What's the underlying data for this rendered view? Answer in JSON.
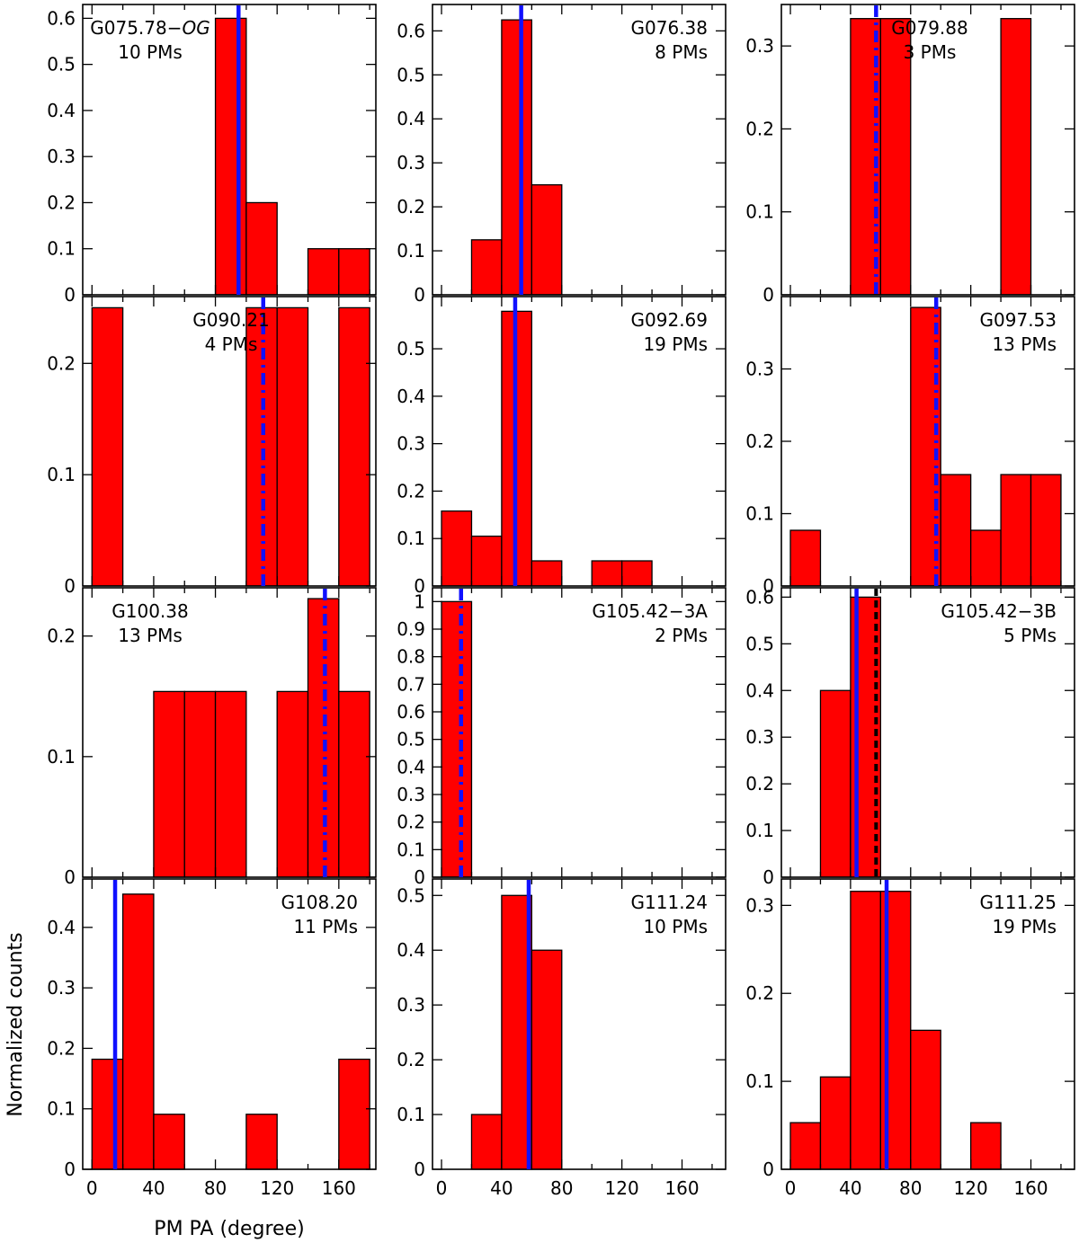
{
  "figure": {
    "ylabel": "Normalized counts",
    "xlabel": "PM PA (degree)",
    "x_tick_labels": [
      "0",
      "40",
      "80",
      "120",
      "160"
    ]
  },
  "chart_data": [
    {
      "type": "bar",
      "name": "G075.78-OG",
      "title_prefix": "G075.78−",
      "title_italic": "OG",
      "subtitle": "10 PMs",
      "label_align": "left",
      "bin_width": 20,
      "bins": [
        0,
        20,
        40,
        60,
        80,
        100,
        120,
        140,
        160
      ],
      "values": [
        0,
        0,
        0,
        0,
        0.6,
        0.2,
        0,
        0.1,
        0.1
      ],
      "ylim": [
        0,
        0.63
      ],
      "yticks": [
        0,
        0.1,
        0.2,
        0.3,
        0.4,
        0.5,
        0.6
      ],
      "yticklabels": [
        "0",
        "0.1",
        "0.2",
        "0.3",
        "0.4",
        "0.5",
        "0.6"
      ],
      "xlim": [
        -6,
        184
      ],
      "lines": [
        {
          "x": 95,
          "color": "#1010ff",
          "style": "solid"
        }
      ]
    },
    {
      "type": "bar",
      "name": "G076.38",
      "title": "G076.38",
      "subtitle": "8 PMs",
      "label_align": "right",
      "bin_width": 20,
      "bins": [
        0,
        20,
        40,
        60,
        80,
        100,
        120,
        140,
        160
      ],
      "values": [
        0,
        0.125,
        0.625,
        0.25,
        0,
        0,
        0,
        0,
        0
      ],
      "ylim": [
        0,
        0.66
      ],
      "yticks": [
        0,
        0.1,
        0.2,
        0.3,
        0.4,
        0.5,
        0.6
      ],
      "yticklabels": [
        "0",
        "0.1",
        "0.2",
        "0.3",
        "0.4",
        "0.5",
        "0.6"
      ],
      "xlim": [
        -6,
        189
      ],
      "lines": [
        {
          "x": 53,
          "color": "#1010ff",
          "style": "solid"
        }
      ]
    },
    {
      "type": "bar",
      "name": "G079.88",
      "title": "G079.88",
      "subtitle": "3 PMs",
      "label_align": "center",
      "bin_width": 20,
      "bins": [
        0,
        20,
        40,
        60,
        80,
        100,
        120,
        140,
        160
      ],
      "values": [
        0,
        0,
        0.333,
        0.333,
        0,
        0,
        0,
        0.333,
        0
      ],
      "ylim": [
        0,
        0.35
      ],
      "yticks": [
        0,
        0.1,
        0.2,
        0.3
      ],
      "yticklabels": [
        "0",
        "0.1",
        "0.2",
        "0.3"
      ],
      "xlim": [
        -6,
        189
      ],
      "lines": [
        {
          "x": 57,
          "color": "#1010ff",
          "style": "dashdot"
        }
      ]
    },
    {
      "type": "bar",
      "name": "G090.21",
      "title": "G090.21",
      "subtitle": "4 PMs",
      "label_align": "center",
      "bin_width": 20,
      "bins": [
        0,
        20,
        40,
        60,
        80,
        100,
        120,
        140,
        160
      ],
      "values": [
        0.25,
        0,
        0,
        0,
        0,
        0.25,
        0.25,
        0,
        0.25
      ],
      "ylim": [
        0,
        0.26
      ],
      "yticks": [
        0,
        0.1,
        0.2
      ],
      "yticklabels": [
        "0",
        "0.1",
        "0.2"
      ],
      "xlim": [
        -6,
        184
      ],
      "lines": [
        {
          "x": 111,
          "color": "#1010ff",
          "style": "dashdot"
        }
      ]
    },
    {
      "type": "bar",
      "name": "G092.69",
      "title": "G092.69",
      "subtitle": "19 PMs",
      "label_align": "right",
      "bin_width": 20,
      "bins": [
        0,
        20,
        40,
        60,
        80,
        100,
        120,
        140,
        160
      ],
      "values": [
        0.158,
        0.105,
        0.579,
        0.053,
        0,
        0.053,
        0.053,
        0,
        0
      ],
      "ylim": [
        0,
        0.61
      ],
      "yticks": [
        0,
        0.1,
        0.2,
        0.3,
        0.4,
        0.5
      ],
      "yticklabels": [
        "0",
        "0.1",
        "0.2",
        "0.3",
        "0.4",
        "0.5"
      ],
      "xlim": [
        -6,
        189
      ],
      "lines": [
        {
          "x": 49,
          "color": "#1010ff",
          "style": "solid"
        }
      ]
    },
    {
      "type": "bar",
      "name": "G097.53",
      "title": "G097.53",
      "subtitle": "13 PMs",
      "label_align": "right",
      "bin_width": 20,
      "bins": [
        0,
        20,
        40,
        60,
        80,
        100,
        120,
        140,
        160
      ],
      "values": [
        0.077,
        0,
        0,
        0,
        0.385,
        0.154,
        0.077,
        0.154,
        0.154
      ],
      "ylim": [
        0,
        0.4
      ],
      "yticks": [
        0,
        0.1,
        0.2,
        0.3
      ],
      "yticklabels": [
        "0",
        "0.1",
        "0.2",
        "0.3"
      ],
      "xlim": [
        -6,
        189
      ],
      "lines": [
        {
          "x": 97,
          "color": "#1010ff",
          "style": "dashdot"
        }
      ]
    },
    {
      "type": "bar",
      "name": "G100.38",
      "title": "G100.38",
      "subtitle": "13 PMs",
      "label_align": "left",
      "bin_width": 20,
      "bins": [
        0,
        20,
        40,
        60,
        80,
        100,
        120,
        140,
        160
      ],
      "values": [
        0,
        0,
        0.154,
        0.154,
        0.154,
        0,
        0.154,
        0.231,
        0.154
      ],
      "ylim": [
        0,
        0.24
      ],
      "yticks": [
        0,
        0.1,
        0.2
      ],
      "yticklabels": [
        "0",
        "0.1",
        "0.2"
      ],
      "xlim": [
        -6,
        184
      ],
      "lines": [
        {
          "x": 151,
          "color": "#1010ff",
          "style": "dashdot"
        }
      ]
    },
    {
      "type": "bar",
      "name": "G105.42-3A",
      "title": "G105.42−3A",
      "subtitle": "2 PMs",
      "label_align": "right",
      "bin_width": 20,
      "bins": [
        0,
        20,
        40,
        60,
        80,
        100,
        120,
        140,
        160
      ],
      "values": [
        1,
        0,
        0,
        0,
        0,
        0,
        0,
        0,
        0
      ],
      "ylim": [
        0,
        1.05
      ],
      "yticks": [
        0,
        0.1,
        0.2,
        0.3,
        0.4,
        0.5,
        0.6,
        0.7,
        0.8,
        0.9,
        1
      ],
      "yticklabels": [
        "0",
        "0.1",
        "0.2",
        "0.3",
        "0.4",
        "0.5",
        "0.6",
        "0.7",
        "0.8",
        "0.9",
        "1"
      ],
      "xlim": [
        -6,
        189
      ],
      "lines": [
        {
          "x": 13,
          "color": "#1010ff",
          "style": "dashdot"
        }
      ]
    },
    {
      "type": "bar",
      "name": "G105.42-3B",
      "title": "G105.42−3B",
      "subtitle": "5 PMs",
      "label_align": "right",
      "bin_width": 20,
      "bins": [
        0,
        20,
        40,
        60,
        80,
        100,
        120,
        140,
        160
      ],
      "values": [
        0,
        0.4,
        0.6,
        0,
        0,
        0,
        0,
        0,
        0
      ],
      "ylim": [
        0,
        0.62
      ],
      "yticks": [
        0,
        0.1,
        0.2,
        0.3,
        0.4,
        0.5,
        0.6
      ],
      "yticklabels": [
        "0",
        "0.1",
        "0.2",
        "0.3",
        "0.4",
        "0.5",
        "0.6"
      ],
      "xlim": [
        -6,
        189
      ],
      "lines": [
        {
          "x": 44,
          "color": "#1010ff",
          "style": "solid"
        },
        {
          "x": 57,
          "color": "#000000",
          "style": "dashed"
        }
      ]
    },
    {
      "type": "bar",
      "name": "G108.20",
      "title": "G108.20",
      "subtitle": "11 PMs",
      "label_align": "right",
      "bin_width": 20,
      "bins": [
        0,
        20,
        40,
        60,
        80,
        100,
        120,
        140,
        160
      ],
      "values": [
        0.182,
        0.455,
        0.091,
        0,
        0,
        0.091,
        0,
        0,
        0.182
      ],
      "ylim": [
        0,
        0.48
      ],
      "yticks": [
        0,
        0.1,
        0.2,
        0.3,
        0.4
      ],
      "yticklabels": [
        "0",
        "0.1",
        "0.2",
        "0.3",
        "0.4"
      ],
      "xlim": [
        -6,
        184
      ],
      "lines": [
        {
          "x": 15,
          "color": "#1010ff",
          "style": "solid"
        }
      ]
    },
    {
      "type": "bar",
      "name": "G111.24",
      "title": "G111.24",
      "subtitle": "10 PMs",
      "label_align": "right",
      "bin_width": 20,
      "bins": [
        0,
        20,
        40,
        60,
        80,
        100,
        120,
        140,
        160
      ],
      "values": [
        0,
        0.1,
        0.5,
        0.4,
        0,
        0,
        0,
        0,
        0
      ],
      "ylim": [
        0,
        0.53
      ],
      "yticks": [
        0,
        0.1,
        0.2,
        0.3,
        0.4,
        0.5
      ],
      "yticklabels": [
        "0",
        "0.1",
        "0.2",
        "0.3",
        "0.4",
        "0.5"
      ],
      "xlim": [
        -6,
        189
      ],
      "lines": [
        {
          "x": 58,
          "color": "#1010ff",
          "style": "solid"
        }
      ]
    },
    {
      "type": "bar",
      "name": "G111.25",
      "title": "G111.25",
      "subtitle": "19 PMs",
      "label_align": "right",
      "bin_width": 20,
      "bins": [
        0,
        20,
        40,
        60,
        80,
        100,
        120,
        140,
        160
      ],
      "values": [
        0.053,
        0.105,
        0.316,
        0.316,
        0.158,
        0,
        0.053,
        0,
        0
      ],
      "ylim": [
        0,
        0.33
      ],
      "yticks": [
        0,
        0.1,
        0.2,
        0.3
      ],
      "yticklabels": [
        "0",
        "0.1",
        "0.2",
        "0.3"
      ],
      "xlim": [
        -6,
        189
      ],
      "lines": [
        {
          "x": 64,
          "color": "#1010ff",
          "style": "solid"
        }
      ]
    }
  ]
}
